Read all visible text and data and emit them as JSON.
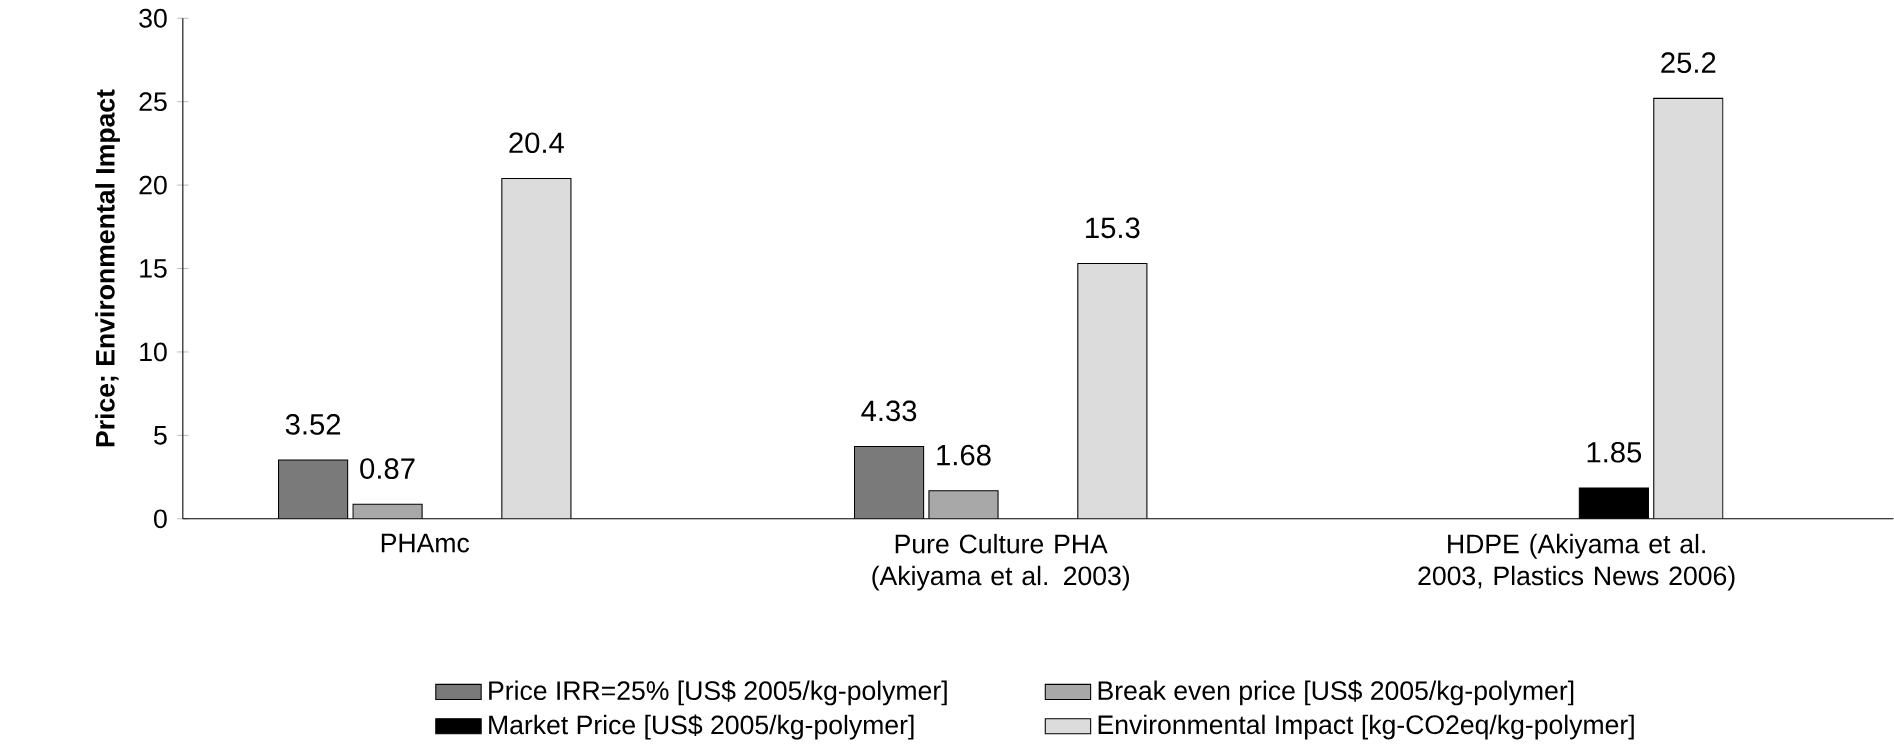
{
  "chart_data": {
    "type": "bar",
    "ylabel": "Price; Environmental Impact",
    "categories": [
      "PHAmc",
      "Pure Culture PHA (Akiyama et al. 2003)",
      "HDPE (Akiyama et al. 2003, Plastics News 2006)"
    ],
    "series": [
      {
        "name": "Price IRR=25% [US$ 2005/kg-polymer]",
        "color": "#7a7a7a",
        "values": [
          3.52,
          4.33,
          null
        ]
      },
      {
        "name": "Break even price  [US$ 2005/kg-polymer]",
        "color": "#a8a8a8",
        "values": [
          0.87,
          1.68,
          null
        ]
      },
      {
        "name": "Market Price [US$ 2005/kg-polymer]",
        "color": "#000000",
        "values": [
          null,
          null,
          1.85
        ]
      },
      {
        "name": "Environmental Impact [kg-CO2eq/kg-polymer]",
        "color": "#dcdcdc",
        "values": [
          20.4,
          15.3,
          25.2
        ]
      }
    ],
    "ylim": [
      0,
      30
    ],
    "yticks": [
      0,
      5,
      10,
      15,
      20,
      25,
      30
    ],
    "data_labels": true,
    "legend": "bottom",
    "grid": false
  }
}
